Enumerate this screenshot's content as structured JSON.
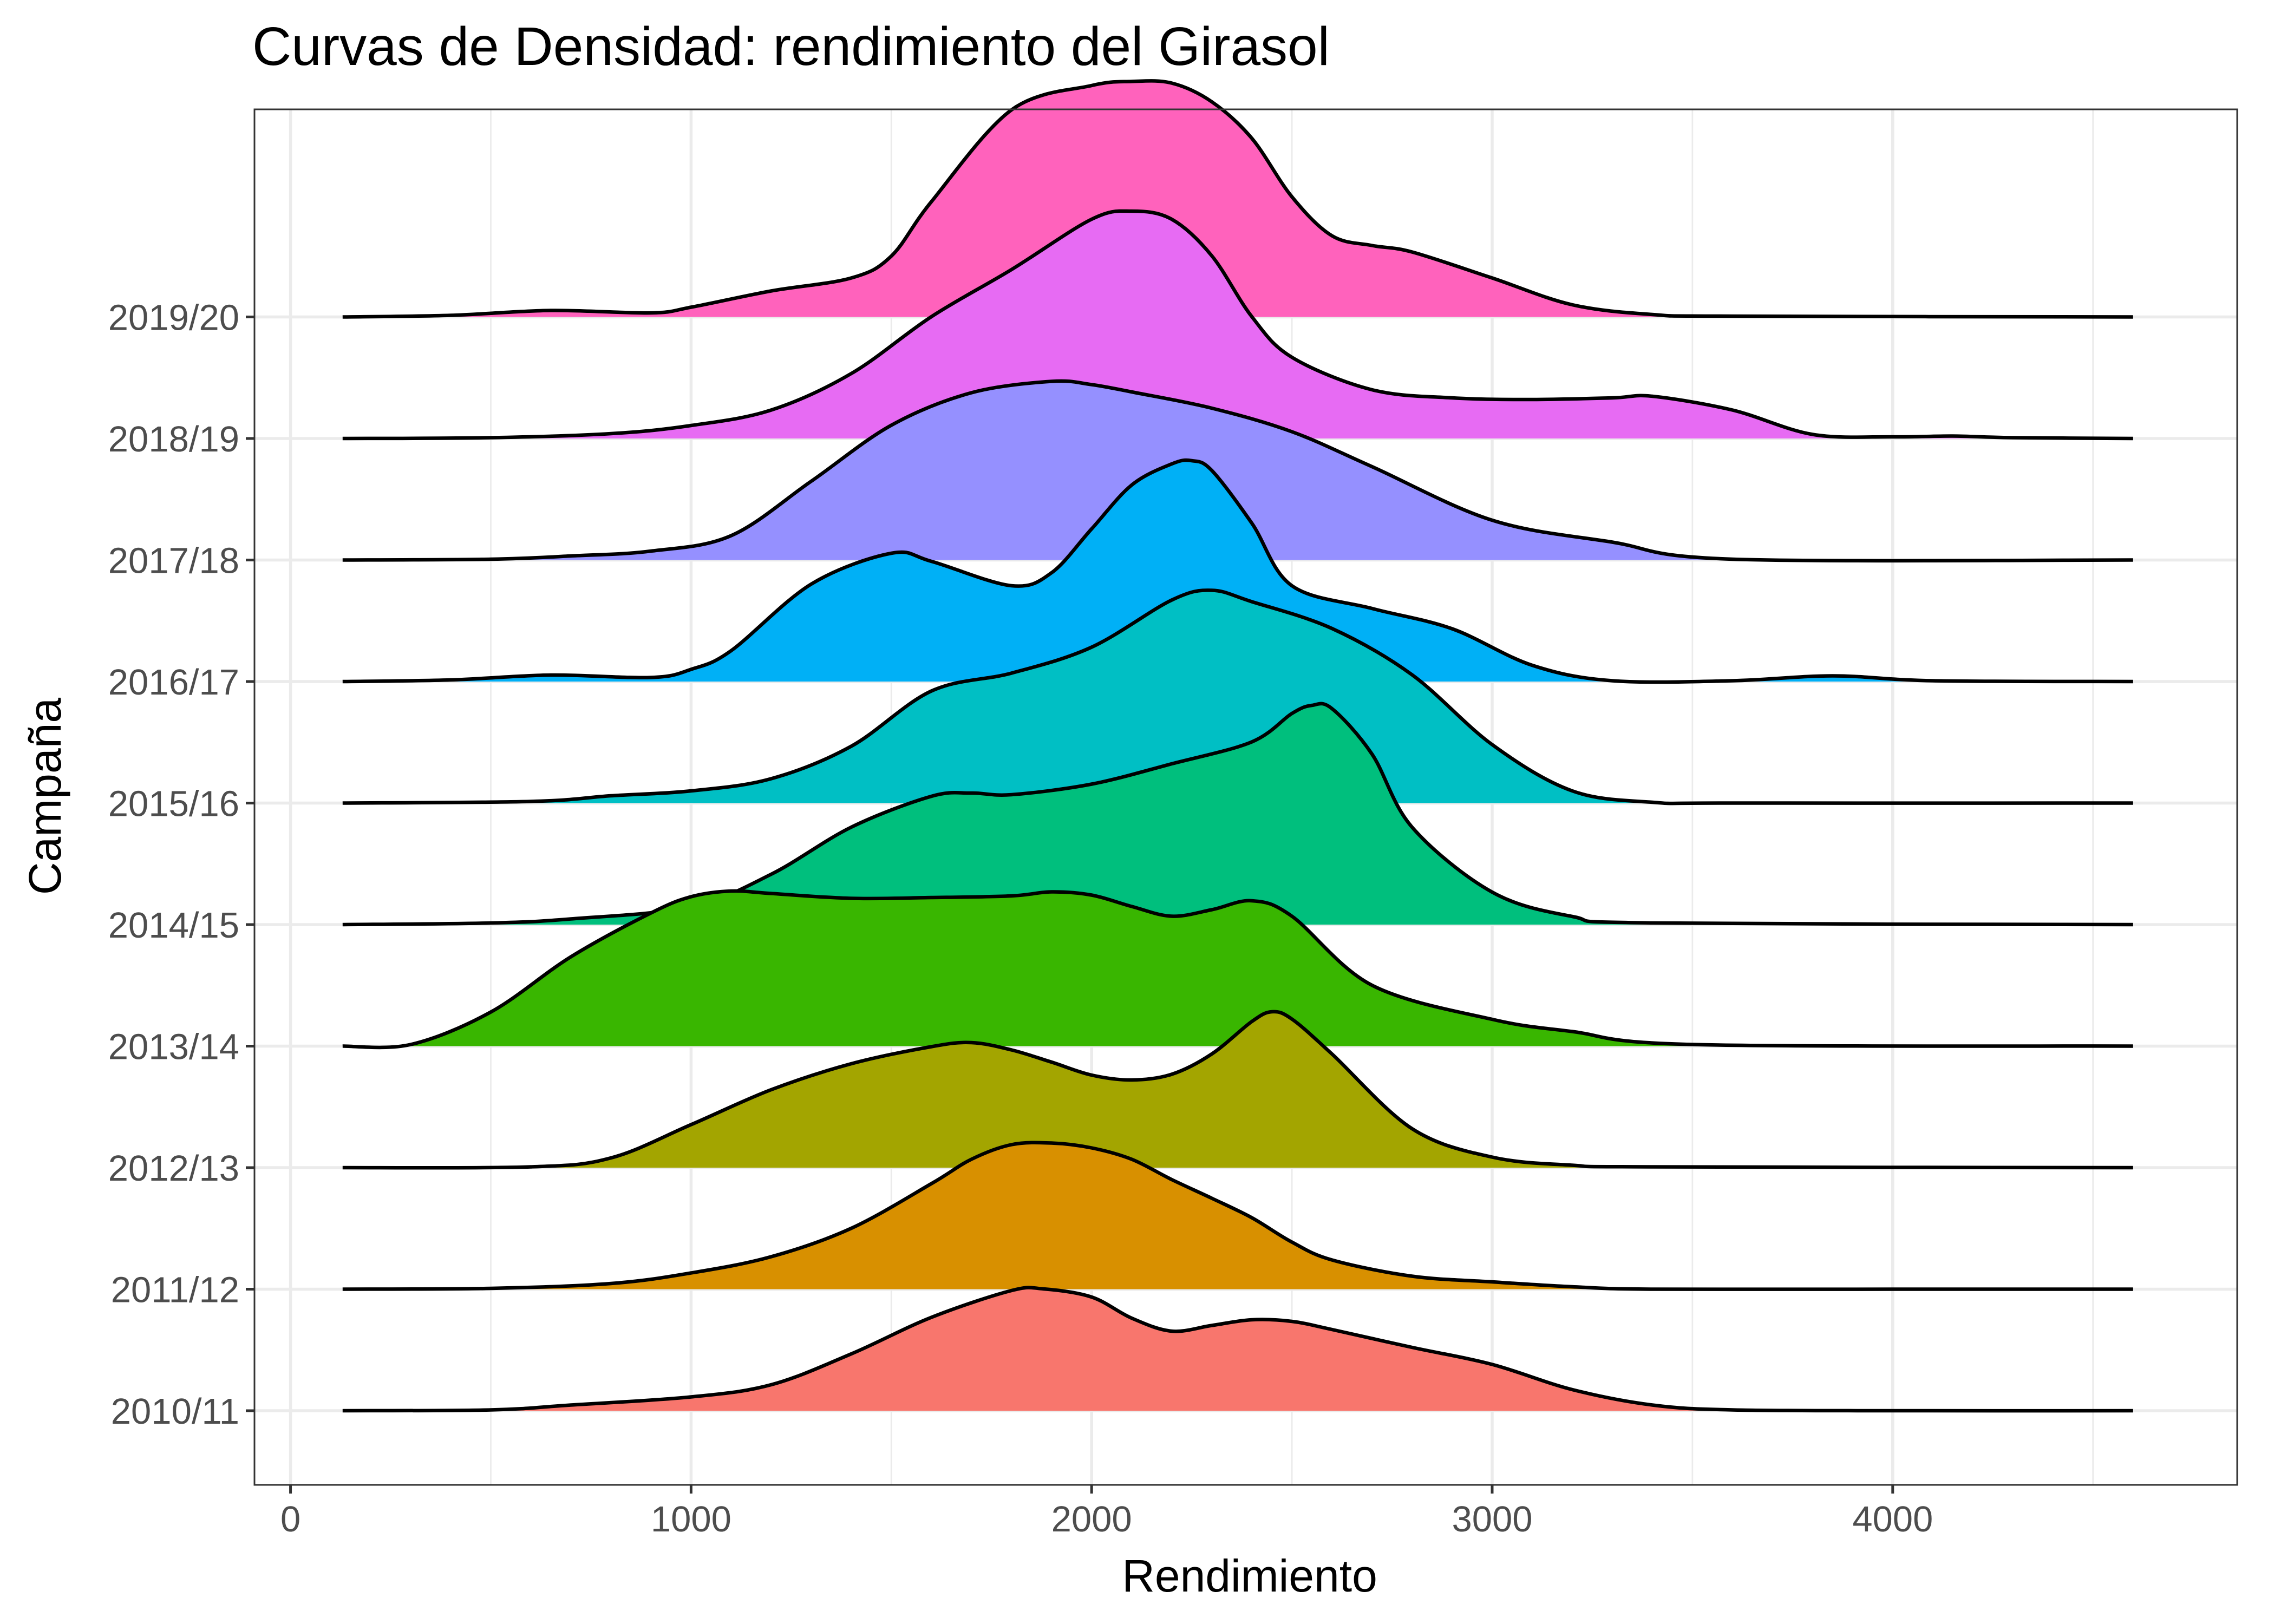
{
  "chart_data": {
    "type": "ridgeline",
    "title": "Curvas de Densidad: rendimiento del Girasol",
    "xlabel": "Rendimiento",
    "ylabel": "Campaña",
    "xlim": [
      -90,
      4860
    ],
    "x_ticks": [
      0,
      1000,
      2000,
      3000,
      4000
    ],
    "grid": true,
    "legend": "none",
    "series": [
      {
        "name": "2010/11",
        "color": "#F8766D",
        "x": [
          130,
          500,
          700,
          1000,
          1200,
          1400,
          1600,
          1800,
          1880,
          2000,
          2100,
          2200,
          2300,
          2400,
          2500,
          2600,
          2800,
          3000,
          3200,
          3400,
          3600,
          4000,
          4600
        ],
        "y": [
          0,
          0.01,
          0.07,
          0.17,
          0.32,
          0.7,
          1.15,
          1.48,
          1.5,
          1.4,
          1.14,
          0.98,
          1.05,
          1.12,
          1.1,
          1.0,
          0.78,
          0.57,
          0.26,
          0.07,
          0.01,
          0,
          0
        ]
      },
      {
        "name": "2011/12",
        "color": "#D89000",
        "x": [
          130,
          500,
          800,
          1000,
          1200,
          1400,
          1600,
          1700,
          1800,
          1900,
          2000,
          2100,
          2200,
          2300,
          2400,
          2500,
          2600,
          2800,
          3000,
          3200,
          3400,
          4000,
          4600
        ],
        "y": [
          0,
          0.01,
          0.07,
          0.2,
          0.4,
          0.75,
          1.3,
          1.6,
          1.78,
          1.8,
          1.74,
          1.6,
          1.35,
          1.12,
          0.88,
          0.58,
          0.36,
          0.16,
          0.09,
          0.03,
          0,
          0,
          0
        ]
      },
      {
        "name": "2012/13",
        "color": "#A3A500",
        "x": [
          130,
          600,
          800,
          1000,
          1200,
          1400,
          1600,
          1700,
          1800,
          1900,
          2000,
          2100,
          2200,
          2300,
          2400,
          2450,
          2500,
          2600,
          2800,
          3000,
          3200,
          3400,
          4600
        ],
        "y": [
          0,
          0.01,
          0.12,
          0.53,
          0.96,
          1.28,
          1.49,
          1.54,
          1.45,
          1.3,
          1.14,
          1.08,
          1.15,
          1.4,
          1.8,
          1.92,
          1.83,
          1.4,
          0.48,
          0.13,
          0.03,
          0.01,
          0
        ]
      },
      {
        "name": "2013/14",
        "color": "#39B600",
        "x": [
          130,
          300,
          500,
          700,
          900,
          1000,
          1100,
          1200,
          1400,
          1600,
          1800,
          1900,
          2000,
          2100,
          2200,
          2300,
          2400,
          2500,
          2700,
          3000,
          3200,
          3500,
          4600
        ],
        "y": [
          0,
          0.02,
          0.42,
          1.1,
          1.64,
          1.84,
          1.91,
          1.88,
          1.82,
          1.83,
          1.85,
          1.9,
          1.86,
          1.72,
          1.6,
          1.68,
          1.79,
          1.6,
          0.75,
          0.33,
          0.18,
          0.02,
          0
        ]
      },
      {
        "name": "2014/15",
        "color": "#00BF7D",
        "x": [
          130,
          500,
          700,
          1000,
          1200,
          1400,
          1600,
          1700,
          1800,
          2000,
          2200,
          2400,
          2500,
          2550,
          2600,
          2700,
          2800,
          3000,
          3200,
          3400,
          4600
        ],
        "y": [
          0,
          0.02,
          0.07,
          0.22,
          0.62,
          1.2,
          1.58,
          1.62,
          1.6,
          1.73,
          1.98,
          2.25,
          2.6,
          2.7,
          2.66,
          2.1,
          1.2,
          0.4,
          0.1,
          0.02,
          0
        ]
      },
      {
        "name": "2015/16",
        "color": "#00BFC4",
        "x": [
          130,
          600,
          800,
          1000,
          1200,
          1400,
          1600,
          1800,
          2000,
          2200,
          2300,
          2400,
          2600,
          2800,
          3000,
          3200,
          3400,
          3600,
          4600
        ],
        "y": [
          0,
          0.02,
          0.09,
          0.15,
          0.3,
          0.7,
          1.38,
          1.6,
          1.92,
          2.5,
          2.62,
          2.48,
          2.15,
          1.58,
          0.72,
          0.15,
          0.01,
          0,
          0
        ]
      },
      {
        "name": "2016/17",
        "color": "#00B0F6",
        "x": [
          130,
          400,
          650,
          900,
          1000,
          1100,
          1300,
          1500,
          1600,
          1800,
          1900,
          2000,
          2100,
          2200,
          2250,
          2300,
          2400,
          2500,
          2700,
          2900,
          3100,
          3300,
          3600,
          3850,
          4100,
          4600
        ],
        "y": [
          0,
          0.02,
          0.08,
          0.05,
          0.15,
          0.38,
          1.2,
          1.58,
          1.48,
          1.18,
          1.34,
          1.88,
          2.42,
          2.68,
          2.72,
          2.6,
          1.95,
          1.18,
          0.9,
          0.65,
          0.2,
          0.01,
          0.01,
          0.07,
          0.01,
          0
        ]
      },
      {
        "name": "2017/18",
        "color": "#9590FF",
        "x": [
          130,
          500,
          700,
          900,
          1100,
          1300,
          1500,
          1700,
          1900,
          2000,
          2100,
          2300,
          2500,
          2700,
          3000,
          3300,
          3600,
          4600
        ],
        "y": [
          0,
          0.01,
          0.05,
          0.11,
          0.3,
          0.97,
          1.66,
          2.06,
          2.2,
          2.16,
          2.07,
          1.87,
          1.58,
          1.15,
          0.49,
          0.22,
          0.01,
          0
        ]
      },
      {
        "name": "2018/19",
        "color": "#E76BF3",
        "x": [
          130,
          500,
          800,
          1000,
          1200,
          1400,
          1600,
          1800,
          2000,
          2100,
          2200,
          2300,
          2400,
          2500,
          2700,
          2900,
          3100,
          3300,
          3400,
          3600,
          3800,
          4000,
          4150,
          4300,
          4600
        ],
        "y": [
          0,
          0.01,
          0.06,
          0.16,
          0.35,
          0.8,
          1.5,
          2.08,
          2.7,
          2.8,
          2.7,
          2.25,
          1.5,
          1.0,
          0.6,
          0.5,
          0.48,
          0.5,
          0.52,
          0.35,
          0.05,
          0.02,
          0.03,
          0.01,
          0
        ]
      },
      {
        "name": "2019/20",
        "color": "#FF62BC",
        "x": [
          130,
          400,
          650,
          900,
          1000,
          1200,
          1400,
          1500,
          1600,
          1800,
          2000,
          2100,
          2200,
          2300,
          2400,
          2500,
          2600,
          2700,
          2800,
          3000,
          3200,
          3400,
          3600,
          4600
        ],
        "y": [
          0,
          0.02,
          0.08,
          0.05,
          0.12,
          0.32,
          0.48,
          0.75,
          1.42,
          2.55,
          2.85,
          2.9,
          2.88,
          2.65,
          2.2,
          1.48,
          1.0,
          0.88,
          0.8,
          0.48,
          0.15,
          0.03,
          0.01,
          0
        ]
      }
    ]
  }
}
